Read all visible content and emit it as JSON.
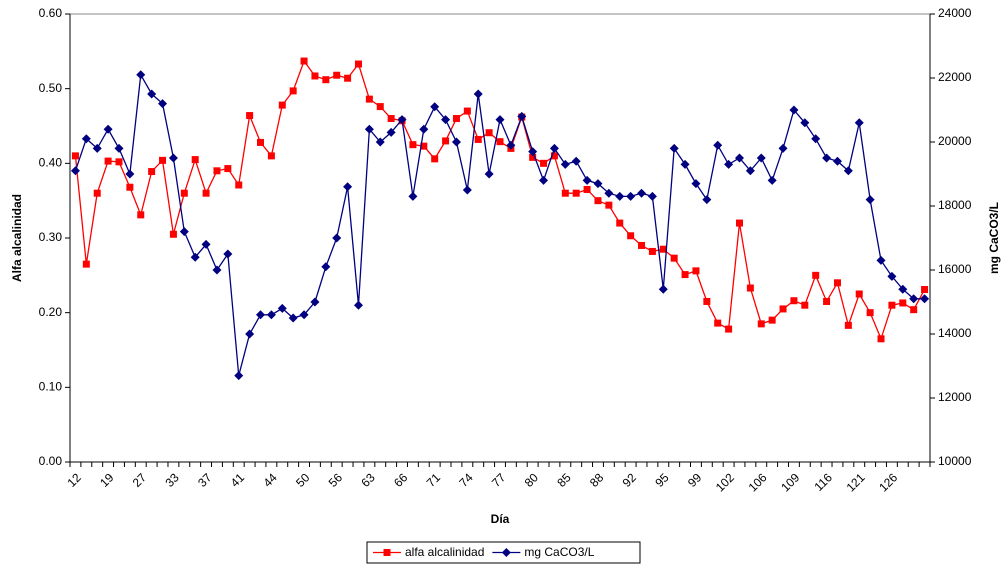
{
  "chart_data": {
    "type": "line",
    "x_label": "Día",
    "y_label": "Alfa alcalinidad",
    "y2_label": "mg CaCO3/L",
    "categories": [
      "12",
      null,
      null,
      "19",
      null,
      null,
      "27",
      null,
      null,
      "33",
      null,
      null,
      "37",
      null,
      null,
      "41",
      null,
      null,
      "44",
      null,
      null,
      "50",
      null,
      null,
      "56",
      null,
      null,
      "63",
      null,
      null,
      "66",
      null,
      null,
      "71",
      null,
      null,
      "74",
      null,
      null,
      "77",
      null,
      null,
      "80",
      null,
      null,
      "85",
      null,
      null,
      "88",
      null,
      null,
      "92",
      null,
      null,
      "95",
      null,
      null,
      "99",
      null,
      null,
      "102",
      null,
      null,
      "106",
      null,
      null,
      "109",
      null,
      null,
      "116",
      null,
      null,
      "121",
      null,
      null,
      "126",
      null,
      null,
      null
    ],
    "series": [
      {
        "name": "alfa alcalinidad",
        "color": "#ff0000",
        "marker": "square",
        "axis": "y",
        "values": [
          0.41,
          0.265,
          0.36,
          0.403,
          0.402,
          0.368,
          0.331,
          0.389,
          0.404,
          0.305,
          0.36,
          0.405,
          0.36,
          0.39,
          0.393,
          0.371,
          0.464,
          0.428,
          0.41,
          0.478,
          0.497,
          0.537,
          0.517,
          0.512,
          0.518,
          0.514,
          0.533,
          0.486,
          0.476,
          0.46,
          0.457,
          0.425,
          0.423,
          0.406,
          0.43,
          0.46,
          0.47,
          0.432,
          0.441,
          0.429,
          0.42,
          0.462,
          0.408,
          0.4,
          0.41,
          0.36,
          0.36,
          0.365,
          0.35,
          0.344,
          0.32,
          0.303,
          0.29,
          0.282,
          0.285,
          0.273,
          0.251,
          0.256,
          0.215,
          0.186,
          0.178,
          0.32,
          0.233,
          0.185,
          0.19,
          0.205,
          0.216,
          0.21,
          0.25,
          0.215,
          0.24,
          0.183,
          0.225,
          0.2,
          0.165,
          0.21,
          0.213,
          0.204,
          0.231
        ]
      },
      {
        "name": "mg CaCO3/L",
        "color": "#000080",
        "marker": "diamond",
        "axis": "y2",
        "values": [
          19100,
          20100,
          19800,
          20400,
          19800,
          19000,
          22100,
          21500,
          21200,
          19500,
          17200,
          16400,
          16800,
          16000,
          16500,
          12700,
          14000,
          14600,
          14600,
          14800,
          14500,
          14600,
          15000,
          16100,
          17000,
          18600,
          14900,
          20400,
          20000,
          20300,
          20700,
          18300,
          20400,
          21100,
          20700,
          20000,
          18500,
          21500,
          19000,
          20700,
          19900,
          20800,
          19700,
          18800,
          19800,
          19300,
          19400,
          18800,
          18700,
          18400,
          18300,
          18300,
          18400,
          18300,
          15400,
          19800,
          19300,
          18700,
          18200,
          19900,
          19300,
          19500,
          19100,
          19500,
          18800,
          19800,
          21000,
          20600,
          20100,
          19500,
          19400,
          19100,
          20600,
          18200,
          16300,
          15800,
          15400,
          15100,
          15100
        ]
      }
    ],
    "ylim": [
      0,
      0.6
    ],
    "yticks": [
      {
        "value": 0,
        "label": "0.00"
      },
      {
        "value": 0.1,
        "label": "0.10"
      },
      {
        "value": 0.2,
        "label": "0.20"
      },
      {
        "value": 0.3,
        "label": "0.30"
      },
      {
        "value": 0.4,
        "label": "0.40"
      },
      {
        "value": 0.5,
        "label": "0.50"
      },
      {
        "value": 0.6,
        "label": "0.60"
      }
    ],
    "y2lim": [
      10000,
      24000
    ],
    "y2ticks": [
      10000,
      12000,
      14000,
      16000,
      18000,
      20000,
      22000,
      24000
    ],
    "legend": "bottom",
    "grid": false
  }
}
